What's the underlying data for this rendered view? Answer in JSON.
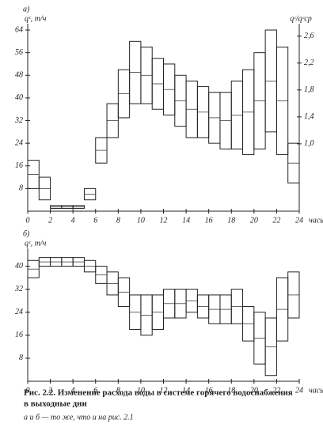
{
  "chart_data": [
    {
      "type": "range",
      "panel_label": "а)",
      "ylabel": "qᶜ, т/ч",
      "y2label": "qᶜ/qᶜср",
      "xlabel": "часы",
      "x": [
        0,
        1,
        2,
        3,
        4,
        5,
        6,
        7,
        8,
        9,
        10,
        11,
        12,
        13,
        14,
        15,
        16,
        17,
        18,
        19,
        20,
        21,
        22,
        23
      ],
      "low": [
        8,
        4,
        1,
        1,
        1,
        4,
        17,
        26,
        33,
        38,
        38,
        36,
        34,
        30,
        26,
        26,
        24,
        22,
        22,
        20,
        22,
        28,
        20,
        10
      ],
      "high": [
        18,
        12,
        2,
        2,
        2,
        8,
        26,
        38,
        50,
        60,
        58,
        54,
        52,
        48,
        46,
        44,
        42,
        42,
        46,
        50,
        56,
        64,
        58,
        24
      ],
      "xlim": [
        0,
        24
      ],
      "xticks": [
        0,
        2,
        4,
        6,
        8,
        10,
        12,
        14,
        16,
        18,
        20,
        22,
        24
      ],
      "ylim": [
        0,
        64
      ],
      "yticks": [
        8,
        16,
        24,
        32,
        40,
        48,
        56,
        64
      ],
      "y2lim": [
        0,
        2.69
      ],
      "y2ticks": [
        {
          "value": 1.0,
          "label": "1,0"
        },
        {
          "value": 1.4,
          "label": "1,4"
        },
        {
          "value": 1.8,
          "label": "1,8"
        },
        {
          "value": 2.2,
          "label": "2,2"
        },
        {
          "value": 2.6,
          "label": "2,6"
        }
      ],
      "color": "#222222"
    },
    {
      "type": "range",
      "panel_label": "б)",
      "ylabel": "qᶜ, т/ч",
      "xlabel": "часы",
      "x": [
        0,
        1,
        2,
        3,
        4,
        5,
        6,
        7,
        8,
        9,
        10,
        11,
        12,
        13,
        14,
        15,
        16,
        17,
        18,
        19,
        20,
        21,
        22,
        23
      ],
      "low": [
        36,
        40,
        40,
        40,
        40,
        38,
        34,
        30,
        26,
        18,
        16,
        18,
        22,
        22,
        24,
        22,
        20,
        20,
        20,
        14,
        6,
        2,
        14,
        22
      ],
      "high": [
        42,
        43,
        43,
        43,
        43,
        42,
        40,
        38,
        36,
        30,
        30,
        30,
        32,
        32,
        32,
        30,
        30,
        30,
        32,
        26,
        24,
        22,
        36,
        38
      ],
      "xlim": [
        0,
        24
      ],
      "xticks": [
        0,
        2,
        4,
        6,
        8,
        10,
        12,
        14,
        16,
        18,
        20,
        22,
        24
      ],
      "ylim": [
        0,
        44
      ],
      "yticks": [
        8,
        16,
        24,
        32,
        40
      ],
      "color": "#222222"
    }
  ],
  "caption": {
    "title": [
      "Рис. 2.2. Изменение расхода воды в системе горячего водоснабжения",
      "в выходные дни"
    ],
    "note": "а и б — то же, что и на рис. 2.1"
  }
}
